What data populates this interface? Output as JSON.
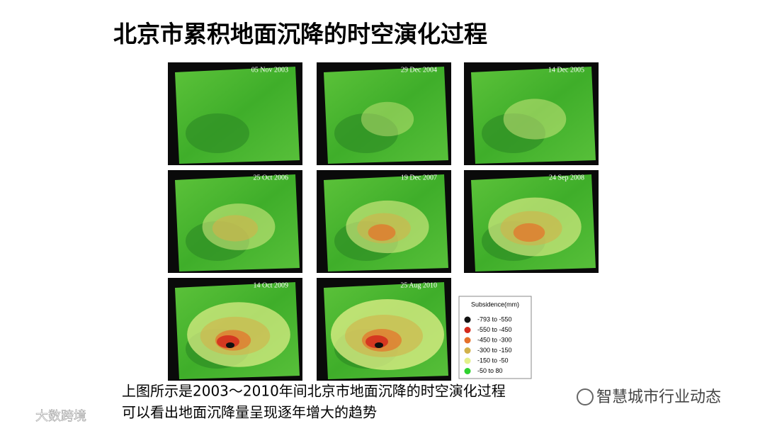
{
  "header": {
    "title": "北京市累积地面沉降的时空演化过程"
  },
  "panels": [
    {
      "date": "05 Nov 2003"
    },
    {
      "date": "29 Dec 2004"
    },
    {
      "date": "14 Dec 2005"
    },
    {
      "date": "25 Oct 2006"
    },
    {
      "date": "19 Dec 2007"
    },
    {
      "date": "24 Sep 2008"
    },
    {
      "date": "14 Oct 2009"
    },
    {
      "date": "25 Aug 2010"
    }
  ],
  "legend": {
    "title": "Subsidence(mm)",
    "items": [
      {
        "label": "-793  to  -550",
        "color": "#111111"
      },
      {
        "label": "-550  to  -450",
        "color": "#d42a1c"
      },
      {
        "label": "-450  to  -300",
        "color": "#e5702a"
      },
      {
        "label": "-300  to  -150",
        "color": "#d2b24a"
      },
      {
        "label": "-150  to  -50",
        "color": "#e3f08a"
      },
      {
        "label": "-50  to  80",
        "color": "#2fd22f"
      }
    ]
  },
  "caption": {
    "lines": [
      "上图所示是2003～2010年间北京市地面沉降的时空演化过程",
      "可以看出地面沉降量呈现逐年增大的趋势"
    ]
  },
  "watermarks": {
    "left": "大数跨境",
    "right": "智慧城市行业动态"
  }
}
